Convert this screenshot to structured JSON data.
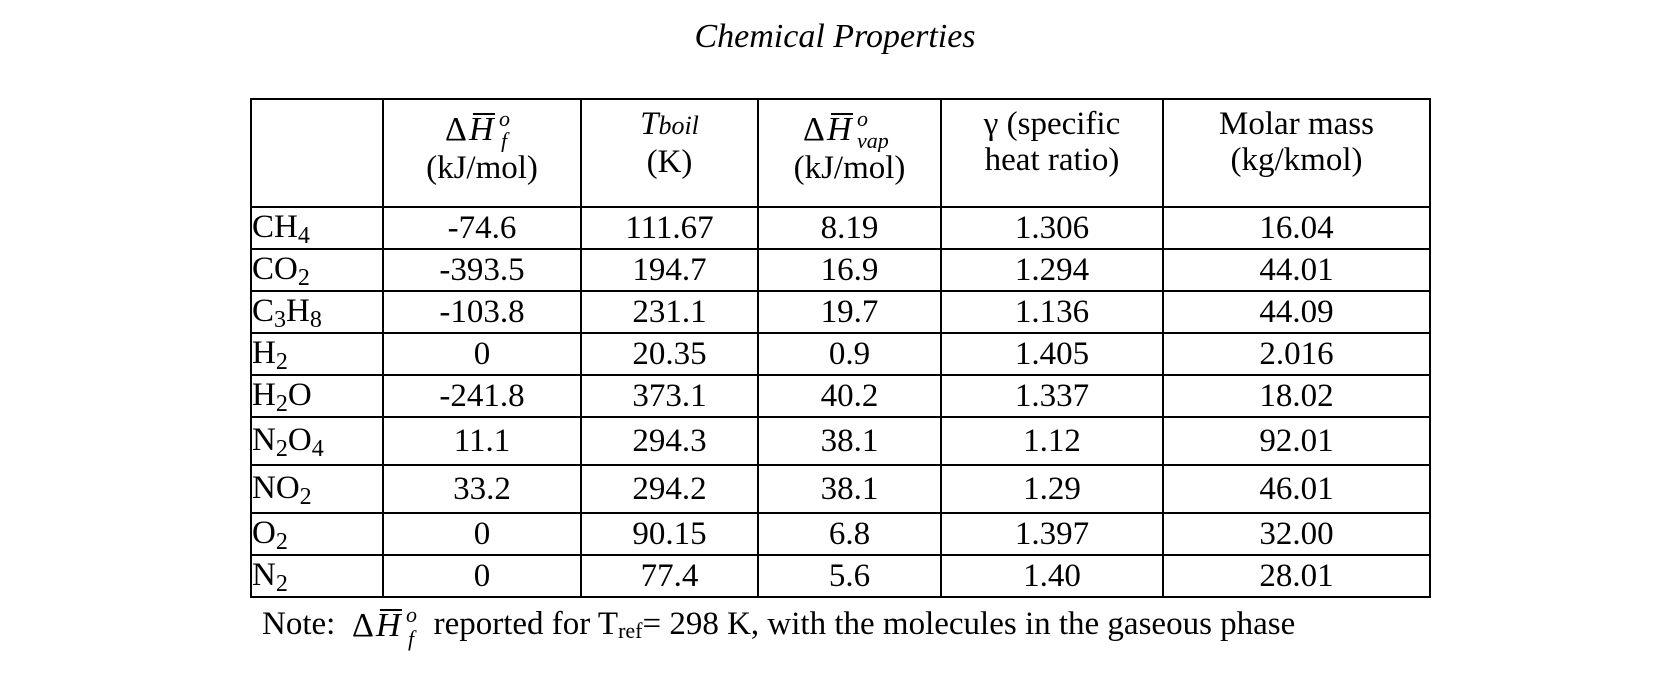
{
  "title": "Chemical Properties",
  "table": {
    "headers": {
      "dhf": {
        "symbol": "ΔH̄°f",
        "unit": "(kJ/mol)"
      },
      "tboil": {
        "symbol": "T",
        "symbol_sub": "boil",
        "unit": "(K)"
      },
      "dhvap": {
        "symbol": "ΔH̄°vap",
        "unit": "(kJ/mol)"
      },
      "gamma": {
        "line1": "γ (specific",
        "line2": "heat ratio)"
      },
      "molar": {
        "line1": "Molar mass",
        "line2": "(kg/kmol)"
      }
    },
    "rows": [
      {
        "parts": [
          "CH",
          "4",
          ""
        ],
        "dhf": "-74.6",
        "tboil": "111.67",
        "dhvap": "8.19",
        "gamma": "1.306",
        "molar": "16.04"
      },
      {
        "parts": [
          "CO",
          "2",
          ""
        ],
        "dhf": "-393.5",
        "tboil": "194.7",
        "dhvap": "16.9",
        "gamma": "1.294",
        "molar": "44.01"
      },
      {
        "parts": [
          "C",
          "3",
          "H",
          "8"
        ],
        "dhf": "-103.8",
        "tboil": "231.1",
        "dhvap": "19.7",
        "gamma": "1.136",
        "molar": "44.09"
      },
      {
        "parts": [
          "H",
          "2",
          ""
        ],
        "dhf": "0",
        "tboil": "20.35",
        "dhvap": "0.9",
        "gamma": "1.405",
        "molar": "2.016"
      },
      {
        "parts": [
          "H",
          "2",
          "O"
        ],
        "dhf": "-241.8",
        "tboil": "373.1",
        "dhvap": "40.2",
        "gamma": "1.337",
        "molar": "18.02"
      },
      {
        "parts": [
          "N",
          "2",
          "O",
          "4"
        ],
        "dhf": "11.1",
        "tboil": "294.3",
        "dhvap": "38.1",
        "gamma": "1.12",
        "molar": "92.01"
      },
      {
        "parts": [
          "NO",
          "2",
          ""
        ],
        "dhf": "33.2",
        "tboil": "294.2",
        "dhvap": "38.1",
        "gamma": "1.29",
        "molar": "46.01"
      },
      {
        "parts": [
          "O",
          "2",
          ""
        ],
        "dhf": "0",
        "tboil": "90.15",
        "dhvap": "6.8",
        "gamma": "1.397",
        "molar": "32.00"
      },
      {
        "parts": [
          "N",
          "2",
          ""
        ],
        "dhf": "0",
        "tboil": "77.4",
        "dhvap": "5.6",
        "gamma": "1.40",
        "molar": "28.01"
      }
    ]
  },
  "note": {
    "prefix": "Note:",
    "symbol": "ΔH̄°f",
    "text1": "reported for T",
    "tref_sub": "ref",
    "text2": "= 298 K, with the molecules in the gaseous phase"
  }
}
